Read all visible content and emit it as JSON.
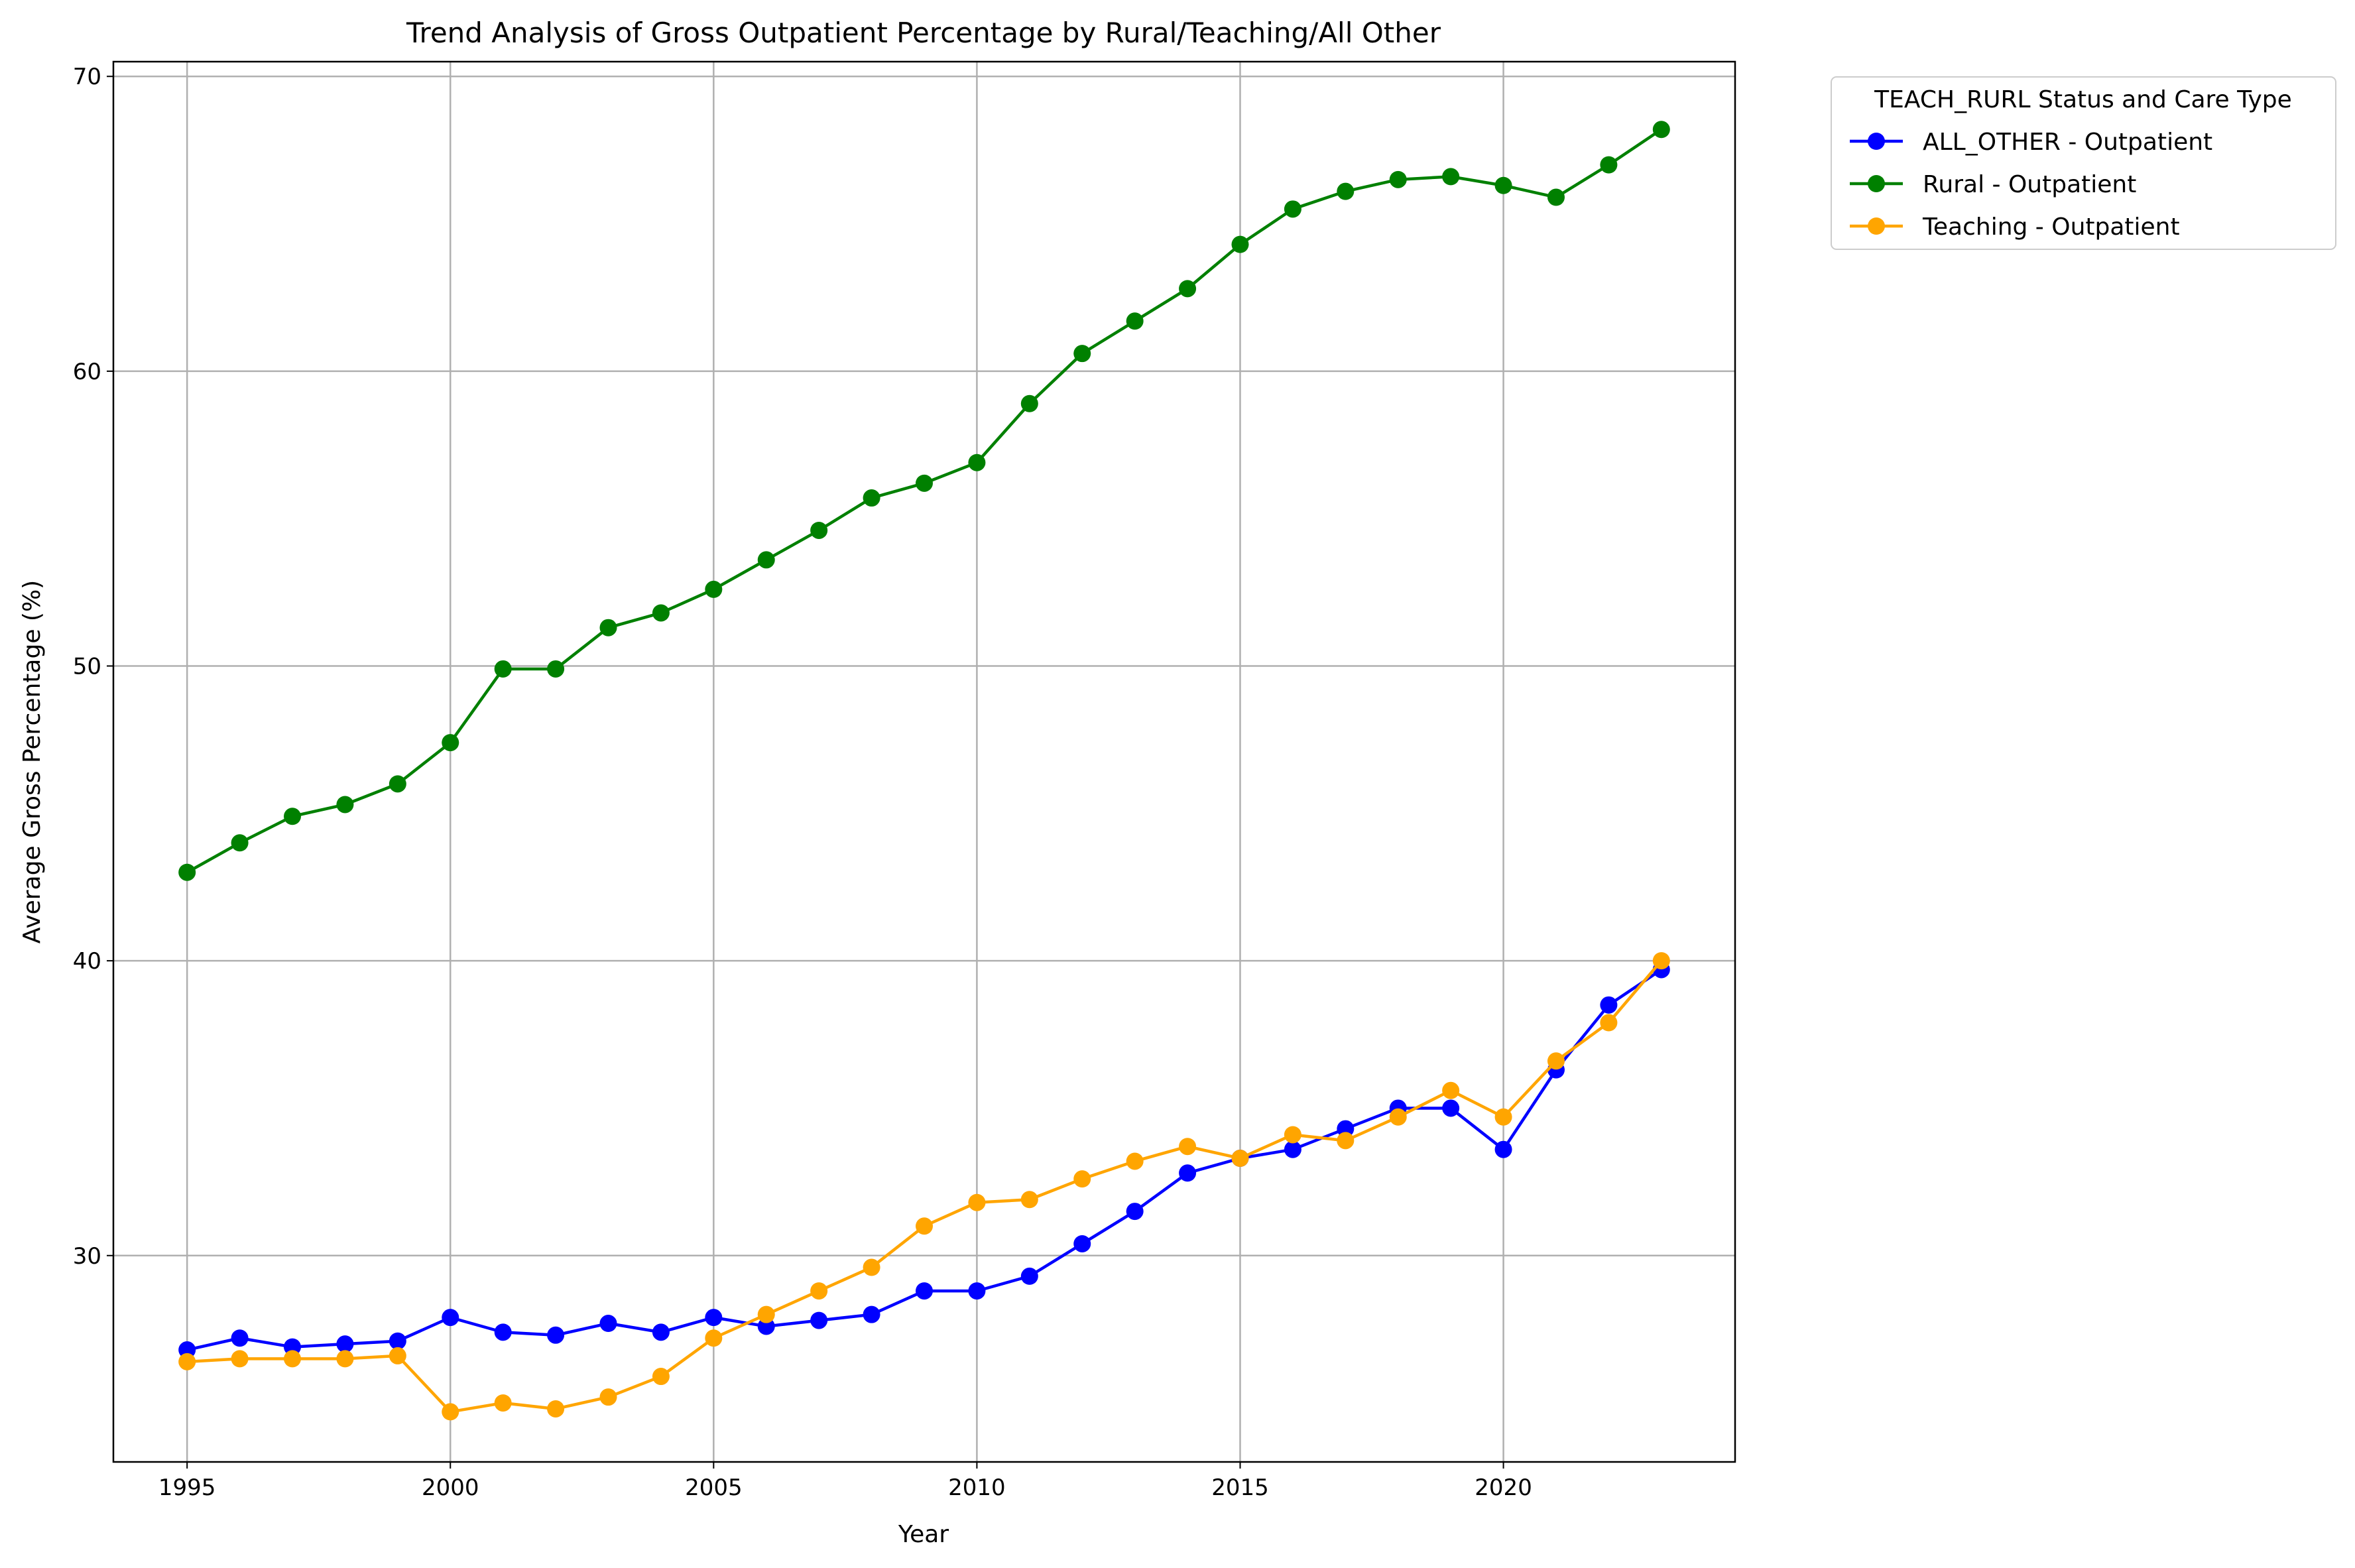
{
  "chart_data": {
    "type": "line",
    "title": "Trend Analysis of Gross Outpatient Percentage by Rural/Teaching/All Other",
    "xlabel": "Year",
    "ylabel": "Average Gross Percentage (%)",
    "xlim": [
      1993.6,
      2024.4
    ],
    "ylim": [
      23.0,
      70.5
    ],
    "xticks": [
      1995,
      2000,
      2005,
      2010,
      2015,
      2020
    ],
    "yticks": [
      30,
      40,
      50,
      60,
      70
    ],
    "grid": true,
    "legend": {
      "title": "TEACH_RURL Status and Care Type",
      "placement": "outside-top-right"
    },
    "x": [
      1995,
      1996,
      1997,
      1998,
      1999,
      2000,
      2001,
      2002,
      2003,
      2004,
      2005,
      2006,
      2007,
      2008,
      2009,
      2010,
      2011,
      2012,
      2013,
      2014,
      2015,
      2016,
      2017,
      2018,
      2019,
      2020,
      2021,
      2022,
      2023
    ],
    "series": [
      {
        "name": "ALL_OTHER - Outpatient",
        "color": "#0000ff",
        "values": [
          26.8,
          27.2,
          26.9,
          27.0,
          27.1,
          27.9,
          27.4,
          27.3,
          27.7,
          27.4,
          27.9,
          27.6,
          27.8,
          28.0,
          28.8,
          28.8,
          29.3,
          30.4,
          31.5,
          32.8,
          33.3,
          33.6,
          34.3,
          35.0,
          35.0,
          33.6,
          36.3,
          38.5,
          39.7
        ]
      },
      {
        "name": "Rural - Outpatient",
        "color": "#008000",
        "values": [
          43.0,
          44.0,
          44.9,
          45.3,
          46.0,
          47.4,
          49.9,
          49.9,
          51.3,
          51.8,
          52.6,
          53.6,
          54.6,
          55.7,
          56.2,
          56.9,
          58.9,
          60.6,
          61.7,
          62.8,
          64.3,
          65.5,
          66.1,
          66.5,
          66.6,
          66.3,
          65.9,
          67.0,
          68.2
        ]
      },
      {
        "name": "Teaching - Outpatient",
        "color": "#ffa500",
        "values": [
          26.4,
          26.5,
          26.5,
          26.5,
          26.6,
          24.7,
          25.0,
          24.8,
          25.2,
          25.9,
          27.2,
          28.0,
          28.8,
          29.6,
          31.0,
          31.8,
          31.9,
          32.6,
          33.2,
          33.7,
          33.3,
          34.1,
          33.9,
          34.7,
          35.6,
          34.7,
          36.6,
          37.9,
          40.0
        ]
      }
    ]
  }
}
